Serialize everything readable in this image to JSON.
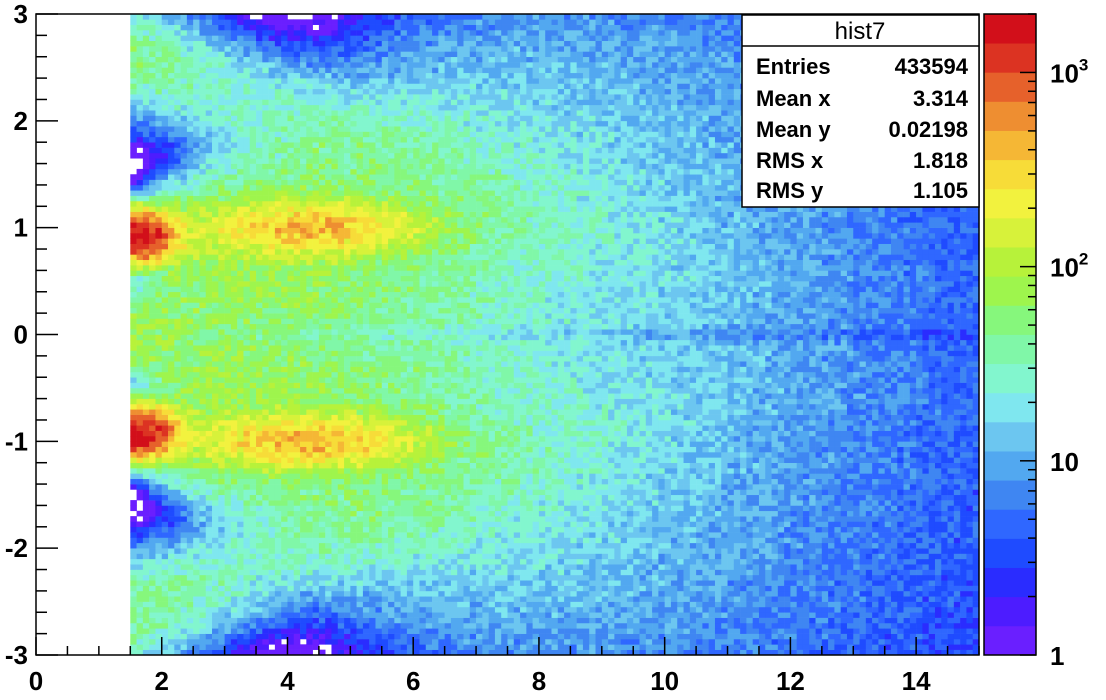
{
  "chart_data": {
    "type": "heatmap",
    "title": "",
    "xlabel": "",
    "ylabel": "",
    "xlim": [
      0,
      15
    ],
    "ylim": [
      -3,
      3
    ],
    "x_ticks": [
      "0",
      "2",
      "4",
      "6",
      "8",
      "10",
      "12",
      "14"
    ],
    "x_tick_values": [
      0,
      2,
      4,
      6,
      8,
      10,
      12,
      14
    ],
    "y_ticks": [
      "-3",
      "-2",
      "-1",
      "0",
      "1",
      "2",
      "3"
    ],
    "y_tick_values": [
      -3,
      -2,
      -1,
      0,
      1,
      2,
      3
    ],
    "z_scale": "log",
    "z_range": [
      1,
      2000
    ],
    "colorbar_labels": [
      {
        "base": "1",
        "exp": "",
        "value": 1
      },
      {
        "base": "10",
        "exp": "",
        "value": 10
      },
      {
        "base": "10",
        "exp": "2",
        "value": 100
      },
      {
        "base": "10",
        "exp": "3",
        "value": 1000
      }
    ],
    "bins": {
      "nx": 150,
      "ny": 120
    },
    "stats_box": {
      "title": "hist7",
      "rows": [
        {
          "label": "Entries",
          "value": "433594"
        },
        {
          "label": "Mean x",
          "value": "3.314"
        },
        {
          "label": "Mean y",
          "value": "0.02198"
        },
        {
          "label": "RMS x",
          "value": "1.818"
        },
        {
          "label": "RMS y",
          "value": "1.105"
        }
      ]
    },
    "legend_position": "top-right",
    "grid": false
  }
}
